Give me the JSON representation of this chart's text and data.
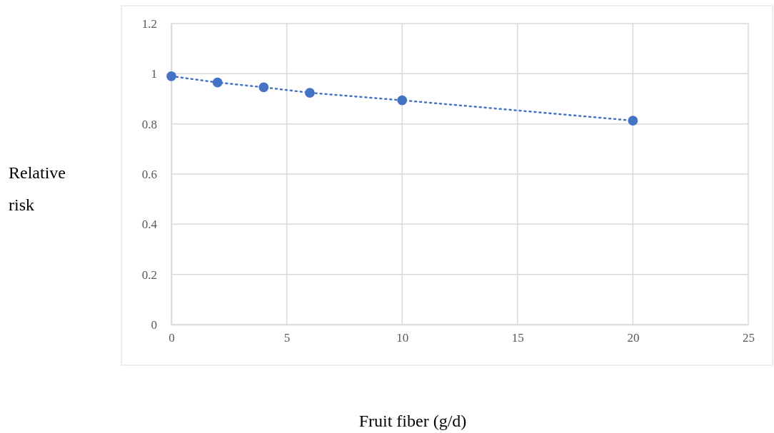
{
  "chart_data": {
    "type": "line",
    "xlabel": "Fruit fiber (g/d)",
    "ylabel": "Relative risk",
    "x": [
      0,
      2,
      4,
      6,
      10,
      20
    ],
    "series": [
      {
        "color": "#4472c4",
        "values": [
          0.99,
          0.965,
          0.946,
          0.924,
          0.894,
          0.813
        ]
      }
    ],
    "xlim": [
      0,
      25
    ],
    "xticks": [
      0,
      5,
      10,
      15,
      20,
      25
    ],
    "ylim": [
      0,
      1.2
    ],
    "yticks": [
      0,
      {
        "value": 0.2,
        "label": "0.2"
      },
      {
        "value": 0.4,
        "label": "0.4"
      },
      {
        "value": 0.6,
        "label": "0.6"
      },
      {
        "value": 0.8,
        "label": "0.8"
      },
      1,
      {
        "value": 1.2,
        "label": "1.2"
      }
    ],
    "grid": true,
    "marker": "circle",
    "line_style": "dotted"
  }
}
